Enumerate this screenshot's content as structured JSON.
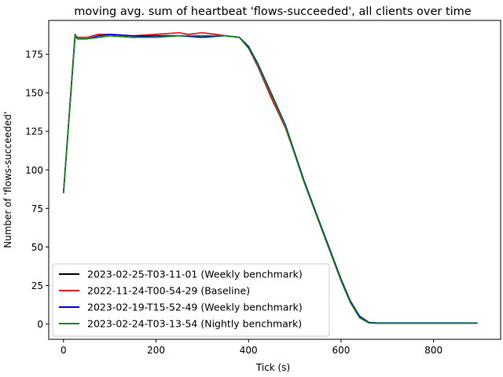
{
  "chart_data": {
    "type": "line",
    "title": "moving avg. sum of heartbeat 'flows-succeeded', all clients over time",
    "xlabel": "Tick (s)",
    "ylabel": "Number of 'flows-succeeded'",
    "xlim": [
      -32,
      945
    ],
    "ylim": [
      -10,
      197
    ],
    "xticks": [
      0,
      200,
      400,
      600,
      800
    ],
    "yticks": [
      0,
      25,
      50,
      75,
      100,
      125,
      150,
      175
    ],
    "grid": false,
    "legend_position": "lower-left",
    "series": [
      {
        "name": "2023-02-25-T03-11-01 (Weekly benchmark)",
        "color": "#000000",
        "x": [
          0,
          25,
          30,
          50,
          100,
          150,
          200,
          250,
          300,
          350,
          380,
          400,
          420,
          450,
          480,
          500,
          520,
          550,
          580,
          600,
          620,
          640,
          660,
          680,
          700,
          800,
          895
        ],
        "y": [
          85,
          187,
          185,
          185,
          187,
          186,
          187,
          187,
          187,
          187,
          186,
          180,
          168,
          148,
          128,
          110,
          92,
          68,
          44,
          28,
          14,
          4,
          0.8,
          0.5,
          0.5,
          0.5,
          0.5
        ]
      },
      {
        "name": "2022-11-24-T00-54-29 (Baseline)",
        "color": "#e8141a",
        "x": [
          0,
          25,
          30,
          50,
          75,
          100,
          150,
          200,
          250,
          270,
          300,
          330,
          350,
          380,
          400,
          420,
          450,
          480,
          500,
          520,
          550,
          580,
          600,
          620,
          640,
          660,
          680,
          700,
          800,
          895
        ],
        "y": [
          85,
          188,
          186,
          186,
          188,
          188,
          187,
          188,
          189,
          188,
          189,
          188,
          187,
          186,
          179,
          167,
          146,
          127,
          110,
          92,
          68,
          44,
          28,
          14,
          4,
          0.6,
          0.4,
          0.4,
          0.4,
          0.4
        ]
      },
      {
        "name": "2023-02-19-T15-52-49 (Weekly benchmark)",
        "color": "#0000e6",
        "x": [
          0,
          25,
          30,
          50,
          75,
          100,
          150,
          200,
          250,
          300,
          350,
          380,
          400,
          420,
          450,
          480,
          500,
          520,
          550,
          580,
          600,
          620,
          640,
          660,
          680,
          700,
          800,
          895
        ],
        "y": [
          85,
          187,
          185,
          185,
          187,
          188,
          187,
          187,
          187,
          186,
          187,
          186,
          180,
          169,
          149,
          129,
          111,
          93,
          69,
          45,
          29,
          15,
          5,
          1,
          0.6,
          0.6,
          0.6,
          0.6
        ]
      },
      {
        "name": "2023-02-24-T03-13-54 (Nightly benchmark)",
        "color": "#138a13",
        "x": [
          0,
          25,
          30,
          50,
          75,
          100,
          150,
          200,
          250,
          300,
          350,
          380,
          400,
          420,
          450,
          480,
          500,
          520,
          550,
          580,
          600,
          620,
          640,
          660,
          680,
          700,
          800,
          895
        ],
        "y": [
          85,
          188,
          185,
          185,
          186,
          187,
          186,
          186,
          187,
          187,
          187,
          186,
          179,
          168,
          148,
          128,
          110,
          92,
          68,
          44,
          28,
          14,
          4,
          0.6,
          0.4,
          0.4,
          0.4,
          0.4
        ]
      }
    ]
  }
}
